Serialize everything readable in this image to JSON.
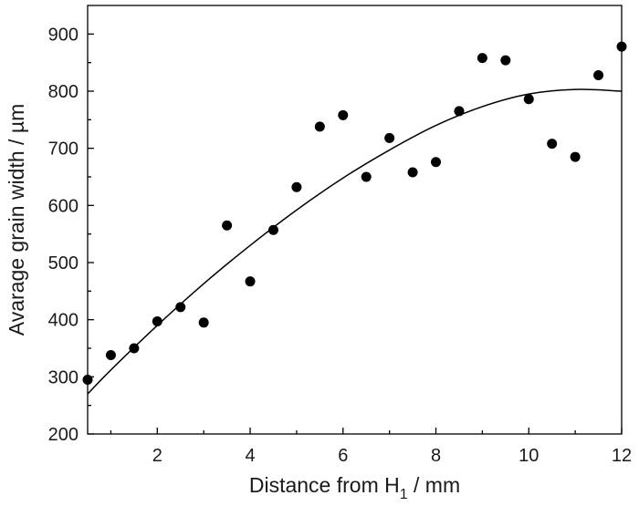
{
  "chart_data": {
    "type": "scatter",
    "title": "",
    "xlabel_main": "Distance from H",
    "xlabel_sub": "1",
    "xlabel_unit": " / mm",
    "ylabel": "Avarage grain width / µm",
    "xlim": [
      0.5,
      12
    ],
    "ylim": [
      200,
      950
    ],
    "x_ticks": [
      2,
      4,
      6,
      8,
      10,
      12
    ],
    "y_ticks": [
      200,
      300,
      400,
      500,
      600,
      700,
      800,
      900
    ],
    "grid": false,
    "series": [
      {
        "points": [
          [
            0.5,
            295
          ],
          [
            1.0,
            338
          ],
          [
            1.5,
            350
          ],
          [
            2.0,
            397
          ],
          [
            2.5,
            422
          ],
          [
            3.0,
            395
          ],
          [
            3.5,
            565
          ],
          [
            4.0,
            467
          ],
          [
            4.5,
            557
          ],
          [
            5.0,
            632
          ],
          [
            5.5,
            738
          ],
          [
            6.0,
            758
          ],
          [
            6.5,
            650
          ],
          [
            7.0,
            718
          ],
          [
            7.5,
            658
          ],
          [
            8.0,
            676
          ],
          [
            8.5,
            765
          ],
          [
            9.0,
            858
          ],
          [
            9.5,
            854
          ],
          [
            10.0,
            786
          ],
          [
            10.5,
            708
          ],
          [
            11.0,
            685
          ],
          [
            11.5,
            828
          ],
          [
            12.0,
            878
          ]
        ]
      }
    ],
    "fit_curve": {
      "type": "quadratic",
      "points": [
        [
          0.5,
          270
        ],
        [
          1.0,
          312
        ],
        [
          2.0,
          390
        ],
        [
          3.0,
          463
        ],
        [
          4.0,
          530
        ],
        [
          5.0,
          592
        ],
        [
          6.0,
          648
        ],
        [
          7.0,
          697
        ],
        [
          8.0,
          740
        ],
        [
          9.0,
          773
        ],
        [
          10.0,
          795
        ],
        [
          11.0,
          803
        ],
        [
          12.0,
          800
        ]
      ]
    }
  }
}
